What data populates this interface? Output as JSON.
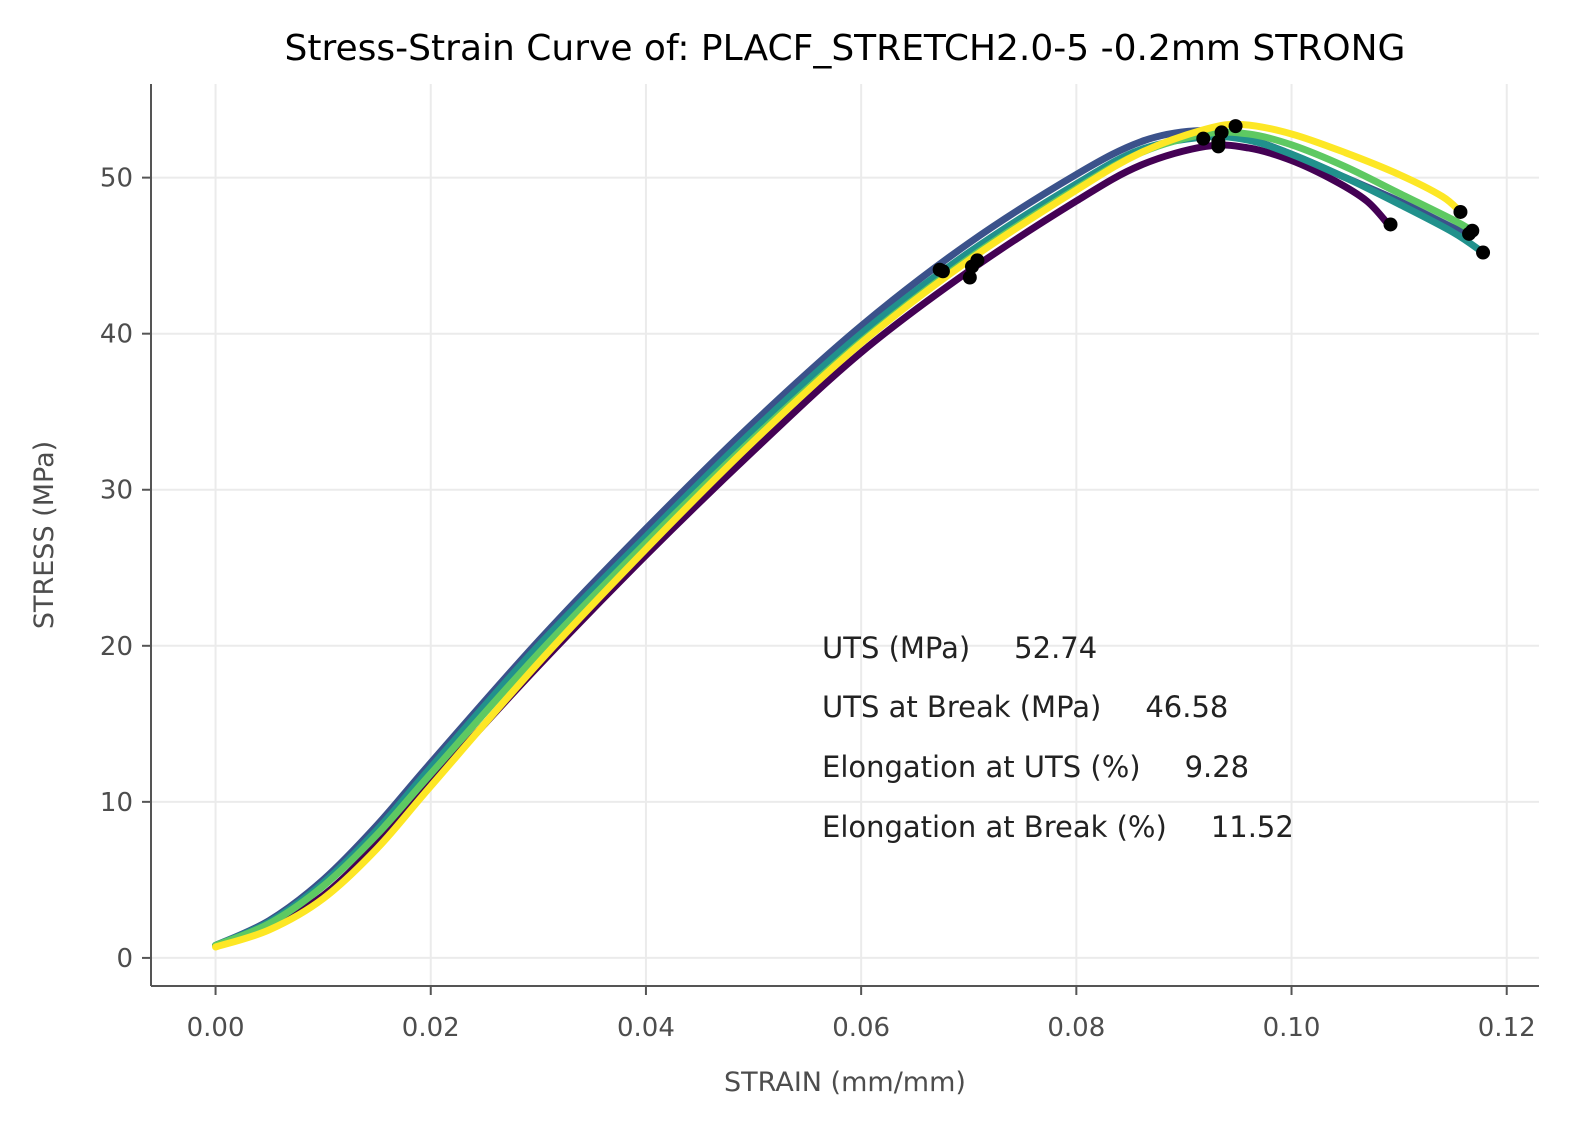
{
  "chart_data": {
    "type": "line",
    "title": "Stress-Strain Curve of: PLACF_STRETCH2.0-5 -0.2mm STRONG",
    "xlabel": "STRAIN (mm/mm)",
    "ylabel": "STRESS (MPa)",
    "xlim": [
      -0.006,
      0.123
    ],
    "ylim": [
      -1.8,
      56
    ],
    "x_ticks": [
      0.0,
      0.02,
      0.04,
      0.06,
      0.08,
      0.1,
      0.12
    ],
    "x_tick_labels": [
      "0.00",
      "0.02",
      "0.04",
      "0.06",
      "0.08",
      "0.10",
      "0.12"
    ],
    "y_ticks": [
      0,
      10,
      20,
      30,
      40,
      50
    ],
    "y_tick_labels": [
      "0",
      "10",
      "20",
      "30",
      "40",
      "50"
    ],
    "grid": true,
    "series": [
      {
        "color": "#440154",
        "points": [
          [
            0.0,
            0.8
          ],
          [
            0.005,
            2.0
          ],
          [
            0.01,
            4.0
          ],
          [
            0.015,
            7.3
          ],
          [
            0.02,
            11.2
          ],
          [
            0.03,
            18.7
          ],
          [
            0.04,
            25.8
          ],
          [
            0.05,
            32.5
          ],
          [
            0.06,
            38.8
          ],
          [
            0.07,
            44.0
          ],
          [
            0.08,
            48.5
          ],
          [
            0.086,
            50.8
          ],
          [
            0.092,
            52.0
          ],
          [
            0.096,
            51.9
          ],
          [
            0.1,
            51.1
          ],
          [
            0.104,
            49.8
          ],
          [
            0.107,
            48.5
          ],
          [
            0.109,
            47.0
          ]
        ],
        "markers": [
          [
            0.0701,
            43.6
          ],
          [
            0.0932,
            52.0
          ],
          [
            0.1092,
            47.0
          ]
        ]
      },
      {
        "color": "#3b528b",
        "points": [
          [
            0.0,
            0.8
          ],
          [
            0.005,
            2.4
          ],
          [
            0.01,
            5.0
          ],
          [
            0.015,
            8.5
          ],
          [
            0.02,
            12.5
          ],
          [
            0.03,
            20.3
          ],
          [
            0.04,
            27.5
          ],
          [
            0.05,
            34.3
          ],
          [
            0.06,
            40.5
          ],
          [
            0.07,
            45.8
          ],
          [
            0.08,
            50.2
          ],
          [
            0.086,
            52.3
          ],
          [
            0.091,
            53.0
          ],
          [
            0.095,
            52.7
          ],
          [
            0.1,
            51.5
          ],
          [
            0.105,
            50.0
          ],
          [
            0.11,
            48.5
          ],
          [
            0.115,
            46.8
          ],
          [
            0.1165,
            46.4
          ]
        ],
        "markers": [
          [
            0.0673,
            44.1
          ],
          [
            0.0918,
            52.5
          ],
          [
            0.1165,
            46.4
          ]
        ]
      },
      {
        "color": "#21918c",
        "points": [
          [
            0.0,
            0.8
          ],
          [
            0.005,
            2.3
          ],
          [
            0.01,
            4.8
          ],
          [
            0.015,
            8.2
          ],
          [
            0.02,
            12.2
          ],
          [
            0.03,
            20.0
          ],
          [
            0.04,
            27.0
          ],
          [
            0.05,
            33.8
          ],
          [
            0.06,
            40.0
          ],
          [
            0.07,
            45.2
          ],
          [
            0.08,
            49.6
          ],
          [
            0.086,
            51.8
          ],
          [
            0.092,
            52.6
          ],
          [
            0.096,
            52.4
          ],
          [
            0.1,
            51.5
          ],
          [
            0.105,
            50.0
          ],
          [
            0.11,
            48.3
          ],
          [
            0.115,
            46.5
          ],
          [
            0.1178,
            45.2
          ]
        ],
        "markers": [
          [
            0.0676,
            44.0
          ],
          [
            0.0932,
            52.3
          ],
          [
            0.1178,
            45.2
          ]
        ]
      },
      {
        "color": "#5ec962",
        "points": [
          [
            0.0,
            0.8
          ],
          [
            0.005,
            2.2
          ],
          [
            0.01,
            4.6
          ],
          [
            0.015,
            7.9
          ],
          [
            0.02,
            11.8
          ],
          [
            0.03,
            19.5
          ],
          [
            0.04,
            26.6
          ],
          [
            0.05,
            33.3
          ],
          [
            0.06,
            39.5
          ],
          [
            0.07,
            44.8
          ],
          [
            0.08,
            49.3
          ],
          [
            0.086,
            51.6
          ],
          [
            0.092,
            52.8
          ],
          [
            0.096,
            52.8
          ],
          [
            0.1,
            52.1
          ],
          [
            0.105,
            50.7
          ],
          [
            0.11,
            49.0
          ],
          [
            0.115,
            47.3
          ],
          [
            0.1168,
            46.6
          ]
        ],
        "markers": [
          [
            0.0708,
            44.7
          ],
          [
            0.0935,
            52.9
          ],
          [
            0.1168,
            46.6
          ]
        ]
      },
      {
        "color": "#fde725",
        "points": [
          [
            0.0,
            0.7
          ],
          [
            0.005,
            1.8
          ],
          [
            0.01,
            3.8
          ],
          [
            0.015,
            7.0
          ],
          [
            0.02,
            11.0
          ],
          [
            0.03,
            18.9
          ],
          [
            0.04,
            26.2
          ],
          [
            0.05,
            33.1
          ],
          [
            0.06,
            39.4
          ],
          [
            0.07,
            44.7
          ],
          [
            0.08,
            49.2
          ],
          [
            0.086,
            51.6
          ],
          [
            0.092,
            53.1
          ],
          [
            0.0955,
            53.4
          ],
          [
            0.1,
            52.8
          ],
          [
            0.105,
            51.6
          ],
          [
            0.11,
            50.2
          ],
          [
            0.114,
            48.8
          ],
          [
            0.1157,
            47.8
          ]
        ],
        "markers": [
          [
            0.0703,
            44.3
          ],
          [
            0.0948,
            53.3
          ],
          [
            0.1157,
            47.8
          ]
        ]
      }
    ],
    "annotations": [
      {
        "label": "UTS (MPa)",
        "value": "52.74"
      },
      {
        "label": "UTS at Break (MPa)",
        "value": "46.58"
      },
      {
        "label": "Elongation at UTS (%)",
        "value": "9.28"
      },
      {
        "label": "Elongation at Break (%)",
        "value": "11.52"
      }
    ]
  }
}
